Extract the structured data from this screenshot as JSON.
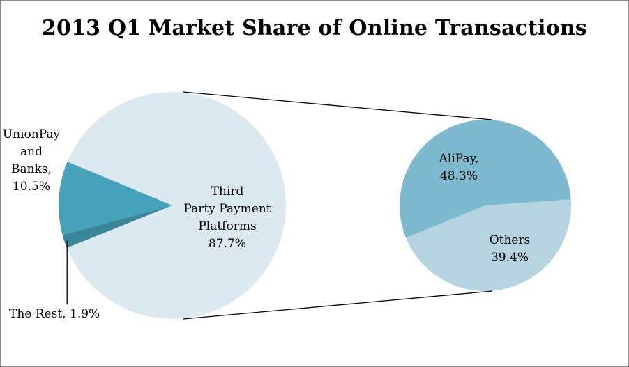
{
  "chart_data": {
    "type": "pie",
    "subtype": "pie-of-pie",
    "title": "2013 Q1 Market Share of Online Transactions",
    "main_pie": {
      "slices": [
        {
          "name": "Third Party Payment Platforms",
          "label": "Third Party Payment Platforms",
          "value": 87.7,
          "value_label": "87.7%",
          "color": "#dce9f0"
        },
        {
          "name": "UnionPay and Banks",
          "label": "UnionPay and Banks,",
          "value": 10.5,
          "value_label": "10.5%",
          "color": "#46a2bb"
        },
        {
          "name": "The Rest",
          "label": "The Rest,",
          "value": 1.9,
          "value_label": "1.9%",
          "color": "#398699"
        }
      ]
    },
    "secondary_pie": {
      "parent_slice": "Third Party Payment Platforms",
      "slices": [
        {
          "name": "AliPay",
          "label": "AliPay,",
          "value": 48.3,
          "value_label": "48.3%",
          "color": "#7db9cf"
        },
        {
          "name": "Others",
          "label": "Others",
          "value": 39.4,
          "value_label": "39.4%",
          "color": "#b5d4e0"
        }
      ]
    },
    "legend": "none"
  },
  "labels": {
    "third_party_line1": "Third",
    "third_party_line2": "Party Payment",
    "third_party_line3": "Platforms",
    "third_party_value": "87.7%",
    "unionpay_line1": "UnionPay",
    "unionpay_line2": "and",
    "unionpay_line3": "Banks,",
    "unionpay_value": "10.5%",
    "rest": "The Rest, 1.9%",
    "alipay_line1": "AliPay,",
    "alipay_value": "48.3%",
    "others_line1": "Others",
    "others_value": "39.4%"
  },
  "colors": {
    "connector": "#000000",
    "border": "#8c8c8c"
  }
}
